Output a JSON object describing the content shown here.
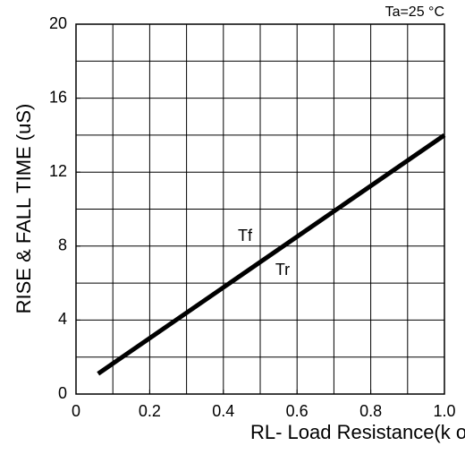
{
  "chart_data": {
    "type": "line",
    "xlabel": "RL- Load Resistance(k ohm)",
    "ylabel": "RISE & FALL TIME (uS)",
    "annotations": [
      "Ta=25 °C",
      "Tf",
      "Tr"
    ],
    "series": [
      {
        "color": "#000000",
        "x": [
          0.06,
          1.0
        ],
        "values": [
          1.1,
          14
        ]
      }
    ],
    "xlim": [
      0,
      1
    ],
    "ylim": [
      0,
      20
    ],
    "xticks": [
      0,
      0.2,
      0.4,
      0.6,
      0.8,
      {
        "value": 1,
        "label": "1.0"
      }
    ],
    "yticks": [
      0,
      4,
      8,
      12,
      16,
      20
    ],
    "xgrid": [
      0.1,
      0.2,
      0.3,
      0.4,
      0.5,
      0.6,
      0.7,
      0.8,
      0.9
    ],
    "ygrid": [
      2,
      4,
      6,
      8,
      10,
      12,
      14,
      16,
      18
    ],
    "grid": true
  }
}
